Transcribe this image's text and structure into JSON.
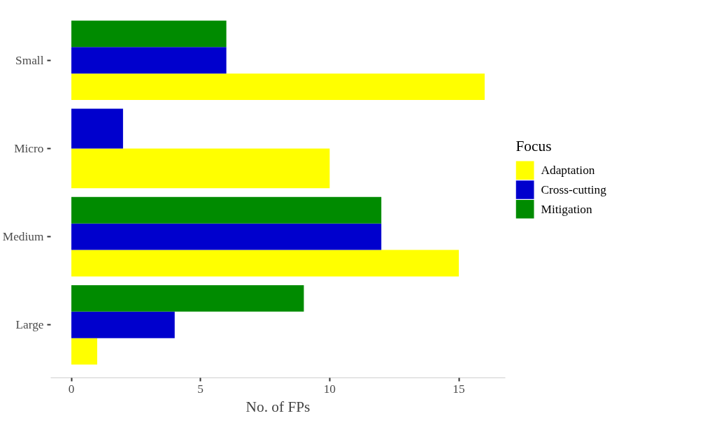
{
  "chart_data": {
    "type": "bar",
    "orientation": "horizontal",
    "xlabel": "No. of FPs",
    "legend_title": "Focus",
    "categories": [
      "Small",
      "Micro",
      "Medium",
      "Large"
    ],
    "series": [
      {
        "name": "Adaptation",
        "color": "#ffff00",
        "values": [
          16,
          10,
          15,
          1
        ]
      },
      {
        "name": "Cross-cutting",
        "color": "#0000cd",
        "values": [
          6,
          2,
          12,
          4
        ]
      },
      {
        "name": "Mitigation",
        "color": "#008b00",
        "values": [
          6,
          null,
          12,
          9
        ]
      }
    ],
    "xlim": [
      -0.8,
      16.8
    ],
    "xticks": [
      0,
      5,
      10,
      15
    ],
    "grid": false,
    "legend": "right"
  }
}
